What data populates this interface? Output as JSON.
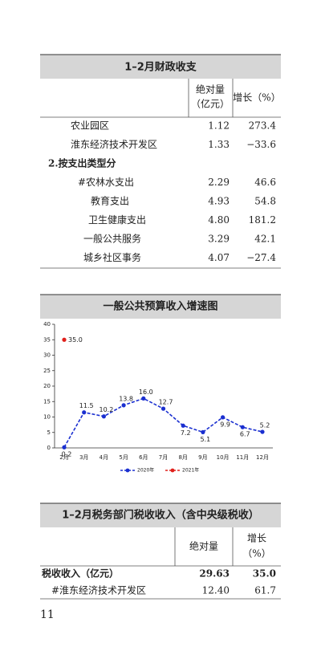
{
  "table1": {
    "title": "1–2月财政收支",
    "header": [
      "绝对量",
      "（亿元）",
      "增长（%）"
    ],
    "rows": [
      [
        "农业园区",
        "1.12",
        "273.4"
      ],
      [
        "淮东经济技术开发区",
        "1.33",
        "−33.6"
      ],
      [
        "2.按支出类型分"
      ],
      [
        "#农林水支出",
        "2.29",
        "46.6"
      ],
      [
        "教育支出",
        "4.93",
        "54.8"
      ],
      [
        "卫生健康支出",
        "4.80",
        "181.2"
      ],
      [
        "一般公共服务",
        "3.29",
        "42.1"
      ],
      [
        "城乡社区事务",
        "4.07",
        "−27.4"
      ]
    ]
  },
  "chart_data": {
    "type": "line",
    "title": "一般公共预算收入增速图",
    "categories": [
      "2月",
      "3月",
      "4月",
      "5月",
      "6月",
      "7月",
      "8月",
      "9月",
      "10月",
      "11月",
      "12月"
    ],
    "series": [
      {
        "name": "2020年",
        "color": "#1a2fd0",
        "values": [
          0.2,
          11.5,
          10.2,
          13.8,
          16.0,
          12.7,
          7.2,
          5.1,
          9.9,
          6.7,
          5.2
        ],
        "value_labels": [
          "0.2",
          "11.5",
          "10.2",
          "13.8",
          "16.0",
          "12.7",
          "7.2",
          "5.1",
          "9.9",
          "6.7",
          "5.2"
        ]
      },
      {
        "name": "2021年",
        "color": "#e0201b",
        "values": [
          35.0,
          null,
          null,
          null,
          null,
          null,
          null,
          null,
          null,
          null,
          null
        ],
        "value_labels": [
          "35.0",
          null,
          null,
          null,
          null,
          null,
          null,
          null,
          null,
          null,
          null
        ]
      }
    ],
    "ylim": [
      0,
      40
    ],
    "yticks": [
      0,
      5,
      10,
      15,
      20,
      25,
      30,
      35,
      40
    ],
    "legend": "bottom"
  },
  "table2": {
    "title": "1–2月税务部门税收收入（含中央级税收）",
    "header": [
      "绝对量",
      "增长",
      "（%）"
    ],
    "rows": [
      [
        "税收收入（亿元）",
        "29.63",
        "35.0"
      ],
      [
        "#淮东经济技术开发区",
        "12.40",
        "61.7"
      ]
    ]
  },
  "page_number": "11"
}
